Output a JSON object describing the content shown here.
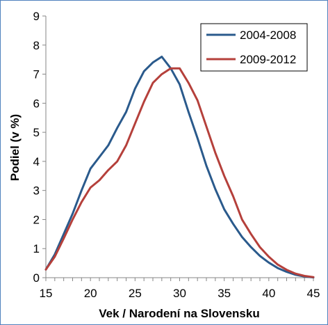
{
  "chart_data": {
    "type": "line",
    "xlabel": "Vek / Narodení na Slovensku",
    "ylabel": "Podiel (v %)",
    "xlim": [
      15,
      45
    ],
    "ylim": [
      0,
      9
    ],
    "x_ticks": [
      15,
      20,
      25,
      30,
      35,
      40,
      45
    ],
    "y_ticks": [
      0,
      1,
      2,
      3,
      4,
      5,
      6,
      7,
      8,
      9
    ],
    "grid": false,
    "legend_position": "top-right",
    "series": [
      {
        "name": "2004-2008",
        "color": "#2a5a8c",
        "x": [
          15,
          16,
          17,
          18,
          19,
          20,
          21,
          22,
          23,
          24,
          25,
          26,
          27,
          28,
          29,
          30,
          31,
          32,
          33,
          34,
          35,
          36,
          37,
          38,
          39,
          40,
          41,
          42,
          43,
          44,
          45
        ],
        "values": [
          0.28,
          0.8,
          1.5,
          2.2,
          3.0,
          3.75,
          4.15,
          4.55,
          5.15,
          5.7,
          6.5,
          7.1,
          7.4,
          7.6,
          7.2,
          6.65,
          5.7,
          4.8,
          3.85,
          3.05,
          2.35,
          1.85,
          1.4,
          1.05,
          0.75,
          0.52,
          0.33,
          0.2,
          0.1,
          0.04,
          0.01
        ]
      },
      {
        "name": "2009-2012",
        "color": "#b5403b",
        "x": [
          15,
          16,
          17,
          18,
          19,
          20,
          21,
          22,
          23,
          24,
          25,
          26,
          27,
          28,
          29,
          30,
          31,
          32,
          33,
          34,
          35,
          36,
          37,
          38,
          39,
          40,
          41,
          42,
          43,
          44,
          45
        ],
        "values": [
          0.28,
          0.72,
          1.35,
          2.0,
          2.6,
          3.1,
          3.35,
          3.7,
          4.0,
          4.55,
          5.3,
          6.05,
          6.7,
          7.0,
          7.2,
          7.2,
          6.7,
          6.1,
          5.2,
          4.3,
          3.5,
          2.8,
          2.0,
          1.5,
          1.05,
          0.72,
          0.45,
          0.27,
          0.14,
          0.06,
          0.02
        ]
      }
    ]
  }
}
